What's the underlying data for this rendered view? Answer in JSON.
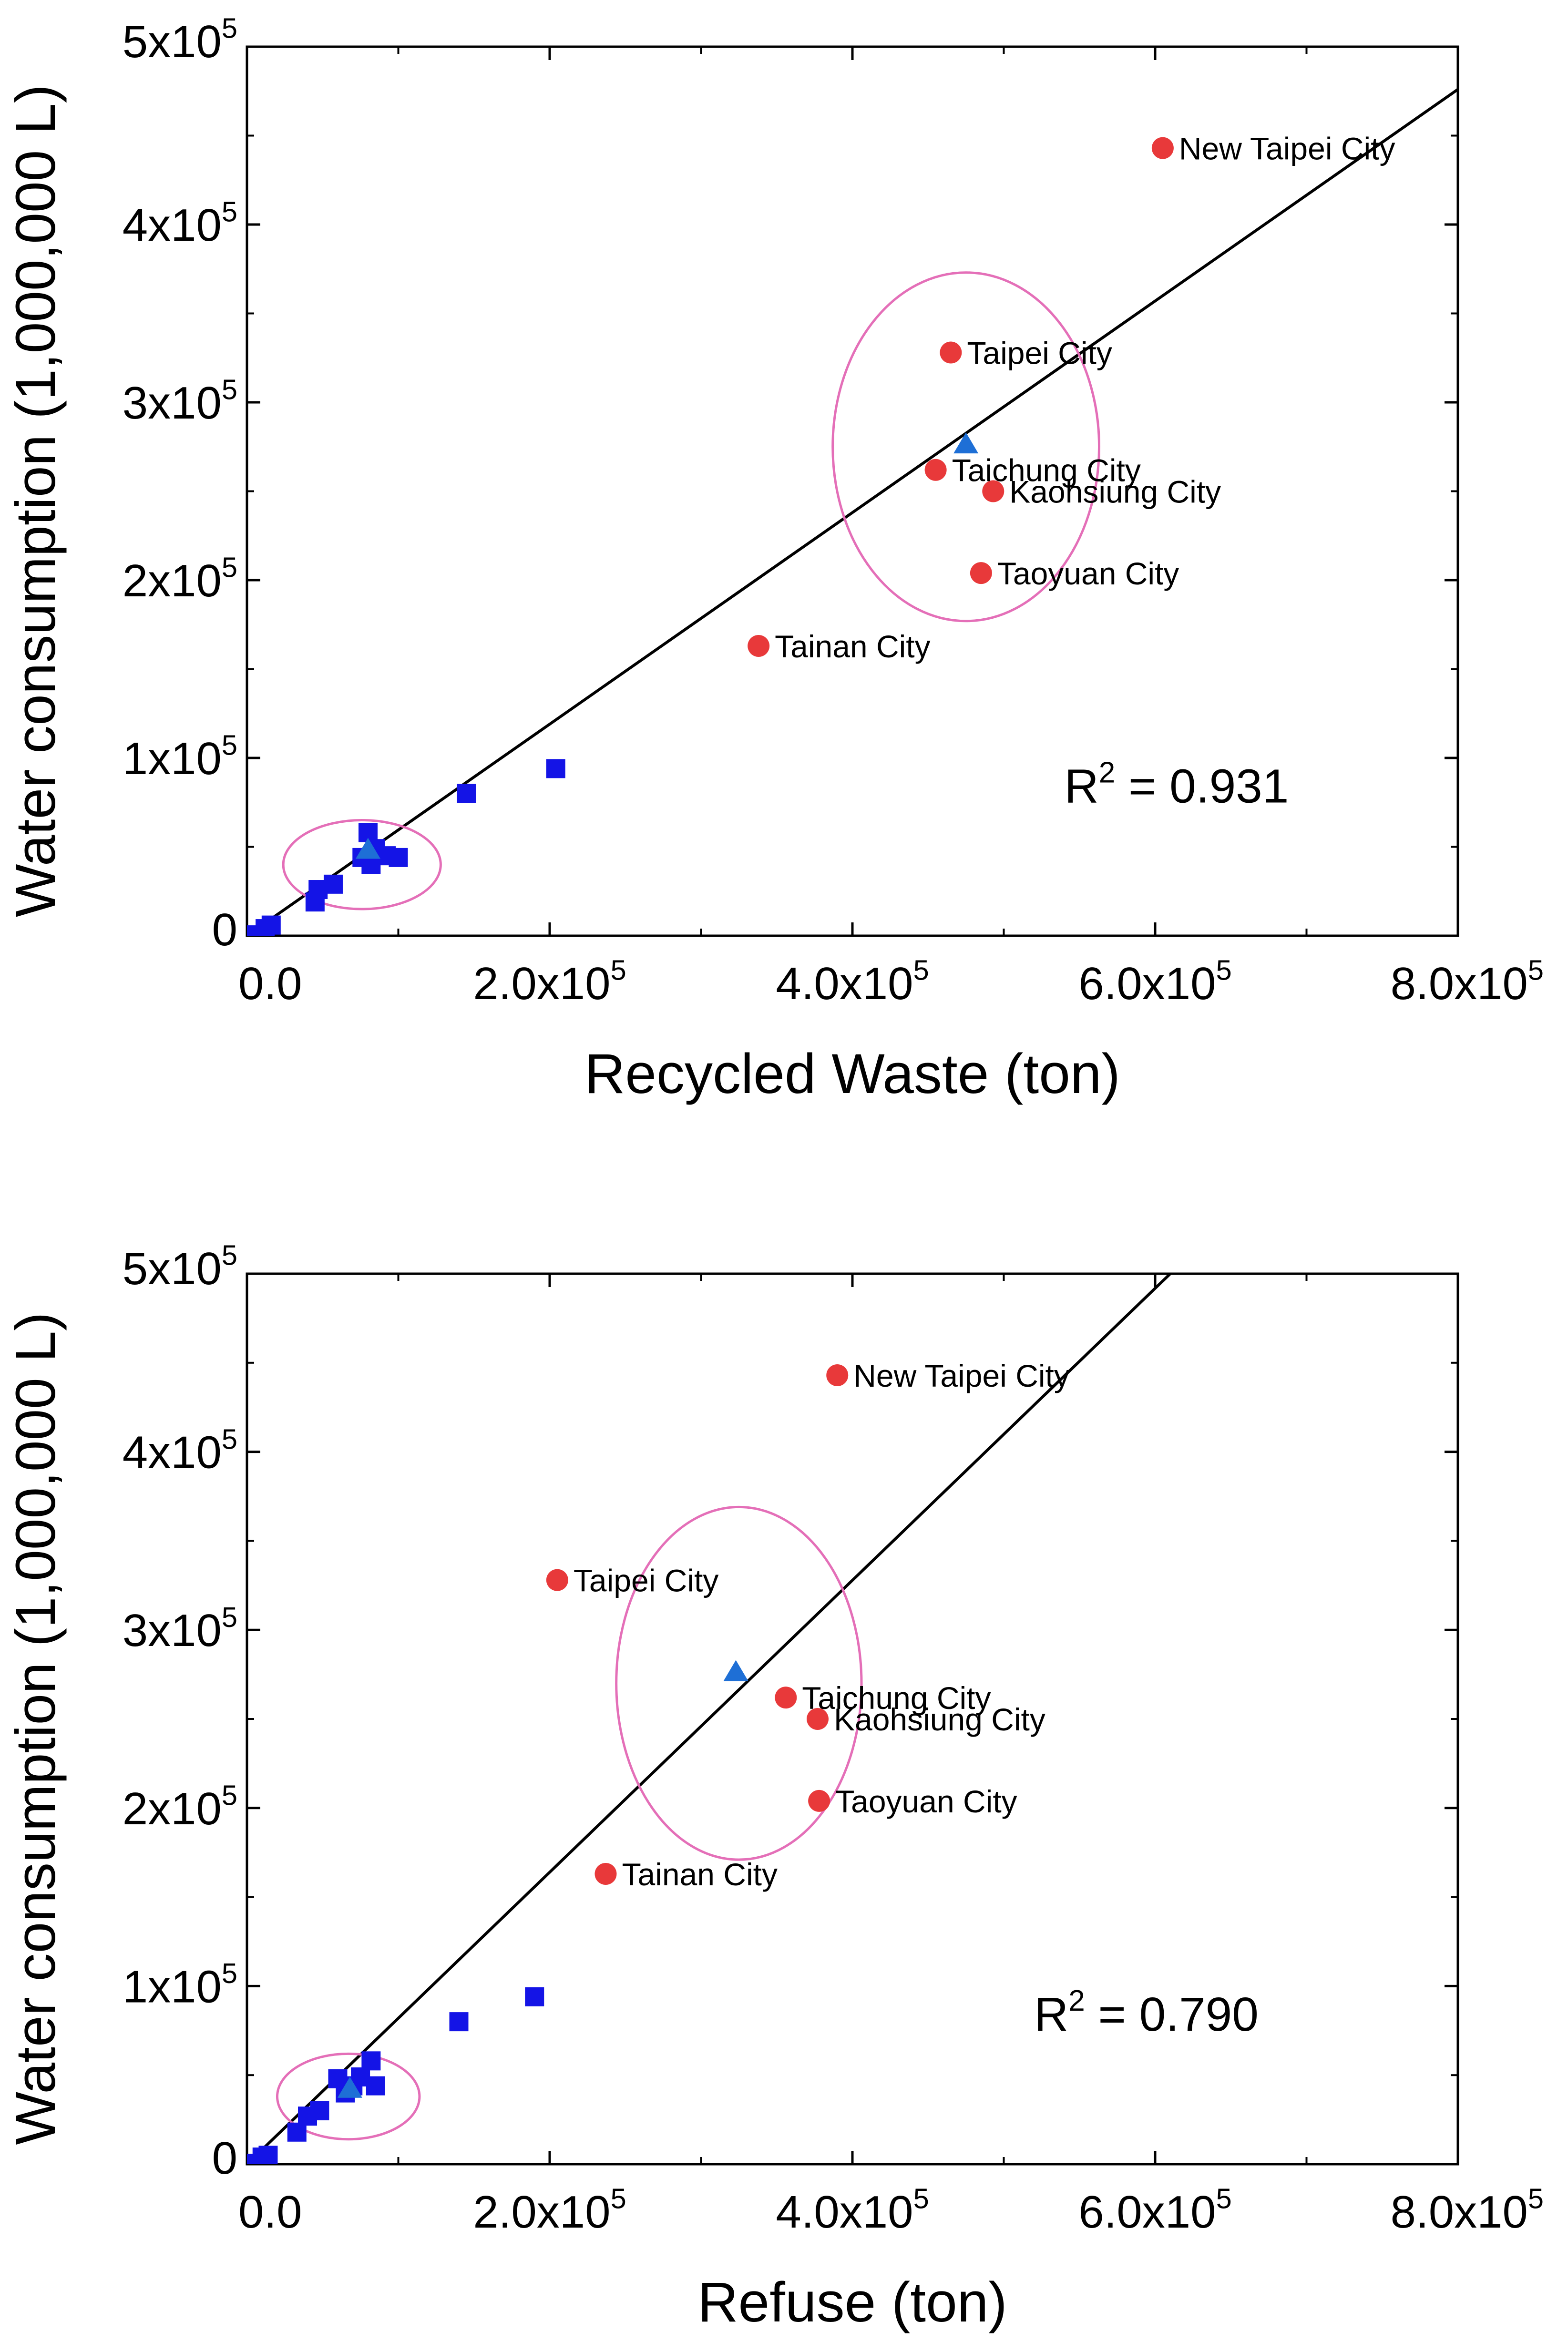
{
  "colors": {
    "city": "#e8393a",
    "other": "#1414e6",
    "triangle": "#1e6fd6",
    "ellipse": "#e46fb8",
    "axis": "#000000"
  },
  "chart_data": [
    {
      "type": "scatter",
      "xlabel": "Recycled Waste (ton)",
      "ylabel": "Water consumption (1,000,000 L)",
      "xlim": [
        0,
        800000
      ],
      "ylim": [
        0,
        500000
      ],
      "x_ticks": [
        {
          "value": 0,
          "label": "0.0",
          "exp": ""
        },
        {
          "value": 200000,
          "label": "2.0x10",
          "exp": "5"
        },
        {
          "value": 400000,
          "label": "4.0x10",
          "exp": "5"
        },
        {
          "value": 600000,
          "label": "6.0x10",
          "exp": "5"
        },
        {
          "value": 800000,
          "label": "8.0x10",
          "exp": "5"
        }
      ],
      "y_ticks": [
        {
          "value": 0,
          "label": "0",
          "exp": ""
        },
        {
          "value": 100000,
          "label": "1x10",
          "exp": "5"
        },
        {
          "value": 200000,
          "label": "2x10",
          "exp": "5"
        },
        {
          "value": 300000,
          "label": "3x10",
          "exp": "5"
        },
        {
          "value": 400000,
          "label": "4x10",
          "exp": "5"
        },
        {
          "value": 500000,
          "label": "5x10",
          "exp": "5"
        }
      ],
      "cities": [
        {
          "name": "New Taipei City",
          "x": 605000,
          "y": 443000
        },
        {
          "name": "Taipei City",
          "x": 465000,
          "y": 328000
        },
        {
          "name": "Taichung City",
          "x": 455000,
          "y": 262000
        },
        {
          "name": "Kaohsiung City",
          "x": 493000,
          "y": 250000
        },
        {
          "name": "Taoyuan City",
          "x": 485000,
          "y": 204000
        },
        {
          "name": "Tainan City",
          "x": 338000,
          "y": 163000
        }
      ],
      "others": [
        {
          "x": 0,
          "y": 0
        },
        {
          "x": 2000,
          "y": 500
        },
        {
          "x": 12000,
          "y": 4000
        },
        {
          "x": 16000,
          "y": 6000
        },
        {
          "x": 45000,
          "y": 19000
        },
        {
          "x": 47000,
          "y": 26000
        },
        {
          "x": 57000,
          "y": 29000
        },
        {
          "x": 76000,
          "y": 44000
        },
        {
          "x": 80000,
          "y": 58000
        },
        {
          "x": 82000,
          "y": 40000
        },
        {
          "x": 85000,
          "y": 49000
        },
        {
          "x": 92000,
          "y": 45000
        },
        {
          "x": 100000,
          "y": 44000
        },
        {
          "x": 145000,
          "y": 80000
        },
        {
          "x": 204000,
          "y": 94000
        }
      ],
      "triangles": [
        {
          "x": 475000,
          "y": 276000
        },
        {
          "x": 80000,
          "y": 48000
        }
      ],
      "fit_line": {
        "x": [
          0,
          800000
        ],
        "y": [
          0,
          476000
        ]
      },
      "ellipses": [
        {
          "cx": 475000,
          "cy": 275000,
          "rx": 88000,
          "ry": 98000
        },
        {
          "cx": 76000,
          "cy": 40000,
          "rx": 52000,
          "ry": 25000
        }
      ],
      "annotation": {
        "prefix": "R",
        "exp": "2",
        "suffix": " = 0.931",
        "x": 540000,
        "y": 75000
      }
    },
    {
      "type": "scatter",
      "xlabel": "Refuse (ton)",
      "ylabel": "Water consumption (1,000,000 L)",
      "xlim": [
        0,
        800000
      ],
      "ylim": [
        0,
        500000
      ],
      "x_ticks": [
        {
          "value": 0,
          "label": "0.0",
          "exp": ""
        },
        {
          "value": 200000,
          "label": "2.0x10",
          "exp": "5"
        },
        {
          "value": 400000,
          "label": "4.0x10",
          "exp": "5"
        },
        {
          "value": 600000,
          "label": "6.0x10",
          "exp": "5"
        },
        {
          "value": 800000,
          "label": "8.0x10",
          "exp": "5"
        }
      ],
      "y_ticks": [
        {
          "value": 0,
          "label": "0",
          "exp": ""
        },
        {
          "value": 100000,
          "label": "1x10",
          "exp": "5"
        },
        {
          "value": 200000,
          "label": "2x10",
          "exp": "5"
        },
        {
          "value": 300000,
          "label": "3x10",
          "exp": "5"
        },
        {
          "value": 400000,
          "label": "4x10",
          "exp": "5"
        },
        {
          "value": 500000,
          "label": "5x10",
          "exp": "5"
        }
      ],
      "cities": [
        {
          "name": "New Taipei City",
          "x": 390000,
          "y": 443000
        },
        {
          "name": "Taipei City",
          "x": 205000,
          "y": 328000
        },
        {
          "name": "Taichung City",
          "x": 356000,
          "y": 262000
        },
        {
          "name": "Kaohsiung City",
          "x": 377000,
          "y": 250000
        },
        {
          "name": "Taoyuan City",
          "x": 378000,
          "y": 204000
        },
        {
          "name": "Tainan City",
          "x": 237000,
          "y": 163000
        }
      ],
      "others": [
        {
          "x": 0,
          "y": 0
        },
        {
          "x": 2000,
          "y": 500
        },
        {
          "x": 10000,
          "y": 4000
        },
        {
          "x": 14000,
          "y": 5000
        },
        {
          "x": 33000,
          "y": 18000
        },
        {
          "x": 40000,
          "y": 27000
        },
        {
          "x": 48000,
          "y": 30000
        },
        {
          "x": 60000,
          "y": 48000
        },
        {
          "x": 65000,
          "y": 40000
        },
        {
          "x": 70000,
          "y": 44000
        },
        {
          "x": 75000,
          "y": 49000
        },
        {
          "x": 85000,
          "y": 44000
        },
        {
          "x": 82000,
          "y": 58000
        },
        {
          "x": 140000,
          "y": 80000
        },
        {
          "x": 190000,
          "y": 94000
        }
      ],
      "triangles": [
        {
          "x": 323000,
          "y": 276000
        },
        {
          "x": 68000,
          "y": 42000
        }
      ],
      "fit_line": {
        "x": [
          0,
          610000
        ],
        "y": [
          0,
          500000
        ]
      },
      "ellipses": [
        {
          "cx": 325000,
          "cy": 270000,
          "rx": 81000,
          "ry": 99000
        },
        {
          "cx": 67000,
          "cy": 38000,
          "rx": 47000,
          "ry": 24000
        }
      ],
      "annotation": {
        "prefix": "R",
        "exp": "2",
        "suffix": " = 0.790",
        "x": 520000,
        "y": 75000
      }
    }
  ]
}
